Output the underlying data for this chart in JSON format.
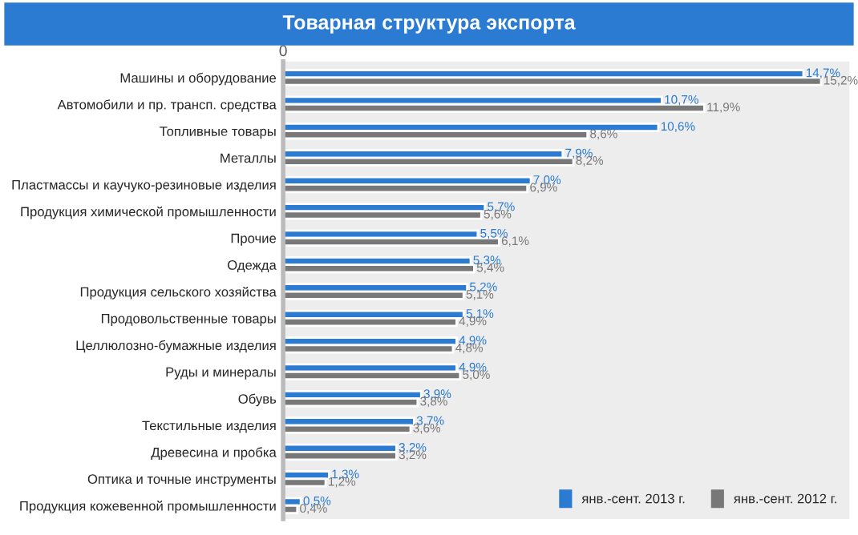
{
  "chart_data": {
    "type": "bar",
    "orientation": "horizontal",
    "title": "Товарная структура экспорта",
    "categories": [
      "Машины и оборудование",
      "Автомобили и пр. трансп. средства",
      "Топливные товары",
      "Металлы",
      "Пластмассы и каучуко-резиновые изделия",
      "Продукция химической промышленности",
      "Прочие",
      "Одежда",
      "Продукция сельского хозяйства",
      "Продовольственные товары",
      "Целлюлозно-бумажные изделия",
      "Руды и минералы",
      "Обувь",
      "Текстильные изделия",
      "Древесина и пробка",
      "Оптика и точные инструменты",
      "Продукция кожевенной промышленности"
    ],
    "series": [
      {
        "name": "янв.-сент. 2013 г.",
        "color": "#2a7bd1",
        "values": [
          14.7,
          10.7,
          10.6,
          7.9,
          7.0,
          5.7,
          5.5,
          5.3,
          5.2,
          5.1,
          4.9,
          4.9,
          3.9,
          3.7,
          3.2,
          1.3,
          0.5
        ],
        "value_labels": [
          "14,7%",
          "10,7%",
          "10,6%",
          "7,9%",
          "7,0%",
          "5,7%",
          "5,5%",
          "5,3%",
          "5,2%",
          "5,1%",
          "4,9%",
          "4,9%",
          "3,9%",
          "3,7%",
          "3,2%",
          "1,3%",
          "0,5%"
        ]
      },
      {
        "name": "янв.-сент. 2012 г.",
        "color": "#787878",
        "values": [
          15.2,
          11.9,
          8.6,
          8.2,
          6.9,
          5.6,
          6.1,
          5.4,
          5.1,
          4.9,
          4.8,
          5.0,
          3.8,
          3.6,
          3.2,
          1.2,
          0.4
        ],
        "value_labels": [
          "15,2%",
          "11,9%",
          "8,6%",
          "8,2%",
          "6,9%",
          "5,6%",
          "6,1%",
          "5,4%",
          "5,1%",
          "4,9%",
          "4,8%",
          "5,0%",
          "3,8%",
          "3,6%",
          "3,2%",
          "1,2%",
          "0,4%"
        ]
      }
    ],
    "xlim": [
      0,
      16
    ],
    "annotations": [
      "0"
    ],
    "grid": false,
    "legend": "bottom right"
  }
}
